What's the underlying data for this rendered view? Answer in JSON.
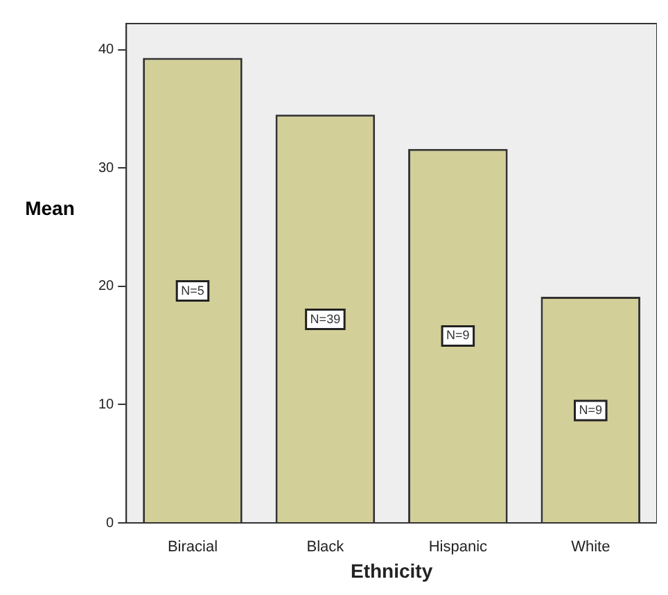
{
  "chart_data": {
    "type": "bar",
    "xlabel": "Ethnicity",
    "ylabel": "Mean",
    "categories": [
      "Biracial",
      "Black",
      "Hispanic",
      "White"
    ],
    "values": [
      39.3,
      34.5,
      31.6,
      19.1
    ],
    "color": "#d3cf98",
    "ylim": [
      0,
      42.2
    ],
    "yticks": [
      0,
      10,
      20,
      30,
      40
    ],
    "grid": false,
    "legend": false,
    "annotations": [
      {
        "text": "N=5",
        "x": "Biracial",
        "y": 19.6
      },
      {
        "text": "N=39",
        "x": "Black",
        "y": 17.2
      },
      {
        "text": "N=9",
        "x": "Hispanic",
        "y": 15.8
      },
      {
        "text": "N=9",
        "x": "White",
        "y": 9.5
      }
    ]
  }
}
